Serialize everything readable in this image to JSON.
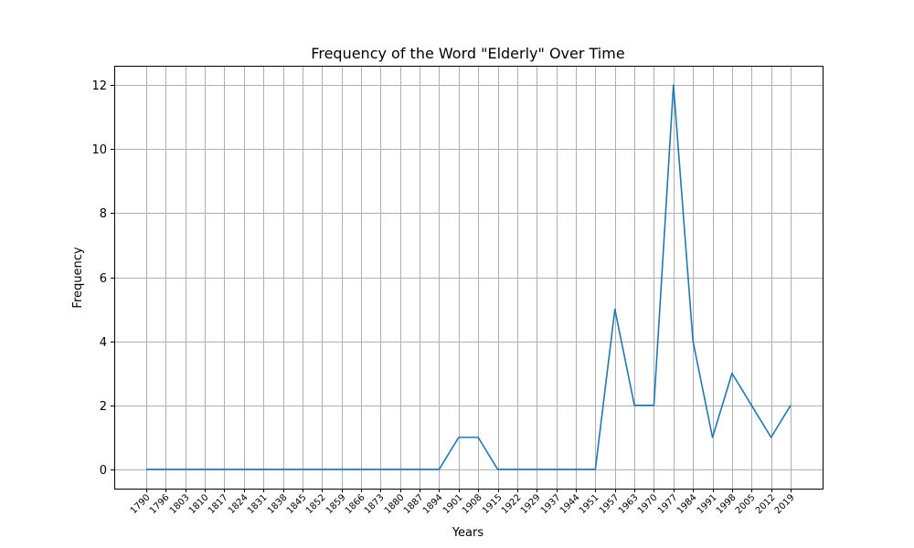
{
  "chart_data": {
    "type": "line",
    "title": "Frequency of the Word \"Elderly\" Over Time",
    "xlabel": "Years",
    "ylabel": "Frequency",
    "x": [
      "1790",
      "1796",
      "1803",
      "1810",
      "1817",
      "1824",
      "1831",
      "1838",
      "1845",
      "1852",
      "1859",
      "1866",
      "1873",
      "1880",
      "1887",
      "1894",
      "1901",
      "1908",
      "1915",
      "1922",
      "1929",
      "1937",
      "1944",
      "1951",
      "1957",
      "1963",
      "1970",
      "1977",
      "1984",
      "1991",
      "1998",
      "2005",
      "2012",
      "2019"
    ],
    "series": [
      {
        "color": "#1f77b4",
        "values": [
          0,
          0,
          0,
          0,
          0,
          0,
          0,
          0,
          0,
          0,
          0,
          0,
          0,
          0,
          0,
          0,
          1,
          1,
          0,
          0,
          0,
          0,
          0,
          0,
          5,
          2,
          2,
          12,
          4,
          1,
          3,
          2,
          1,
          2
        ]
      }
    ],
    "yticks": [
      0,
      2,
      4,
      6,
      8,
      10,
      12
    ],
    "ylim": [
      -0.6,
      12.6
    ],
    "grid": true,
    "legend": false
  }
}
